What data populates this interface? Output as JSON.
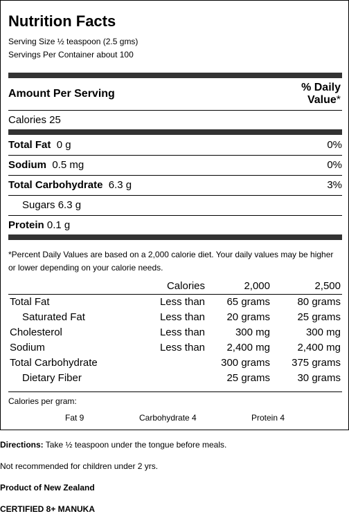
{
  "panel": {
    "title": "Nutrition Facts",
    "serving_size": "Serving Size ½ teaspoon (2.5 gms)",
    "servings_per_container": "Servings Per Container about 100",
    "amount_per_serving": "Amount Per Serving",
    "dv_header_line1": "% Daily",
    "dv_header_line2": "Value",
    "dv_header_star": "*",
    "calories": "Calories 25",
    "nutrients": [
      {
        "label": "Total Fat",
        "amount": "0 g",
        "dv": "0%"
      },
      {
        "label": "Sodium",
        "amount": "0.5 mg",
        "dv": "0%"
      },
      {
        "label": "Total Carbohydrate",
        "amount": "6.3 g",
        "dv": "3%"
      },
      {
        "label": "Sugars 6.3 g"
      },
      {
        "label": "Protein",
        "amount": "0.1 g"
      }
    ],
    "footnote": "*Percent Daily Values are based on a 2,000 calorie diet. Your daily values may be higher or lower depending on your calorie needs.",
    "dv_table": {
      "header": {
        "calories": "Calories",
        "c2000": "2,000",
        "c2500": "2,500"
      },
      "rows": [
        {
          "name": "Total Fat",
          "limit": "Less than",
          "v2000": "65 grams",
          "v2500": "80 grams"
        },
        {
          "name": "Saturated Fat",
          "limit": "Less than",
          "v2000": "20 grams",
          "v2500": "25 grams"
        },
        {
          "name": "Cholesterol",
          "limit": "Less than",
          "v2000": "300 mg",
          "v2500": "300 mg"
        },
        {
          "name": "Sodium",
          "limit": "Less than",
          "v2000": "2,400 mg",
          "v2500": "2,400 mg"
        },
        {
          "name": "Total Carbohydrate",
          "limit": "",
          "v2000": "300 grams",
          "v2500": "375 grams"
        },
        {
          "name": "Dietary Fiber",
          "limit": "",
          "v2000": "25 grams",
          "v2500": "30 grams"
        }
      ]
    },
    "calories_per_gram": "Calories per gram:",
    "cpg": {
      "fat": "Fat 9",
      "carb": "Carbohydrate 4",
      "protein": "Protein 4"
    }
  },
  "after": {
    "directions_label": "Directions:",
    "directions_text": " Take ½ teaspoon under the tongue before meals.",
    "warning": "Not recommended for children under 2 yrs.",
    "origin": "Product of New Zealand",
    "certification": "CERTIFIED 8+ MANUKA"
  }
}
